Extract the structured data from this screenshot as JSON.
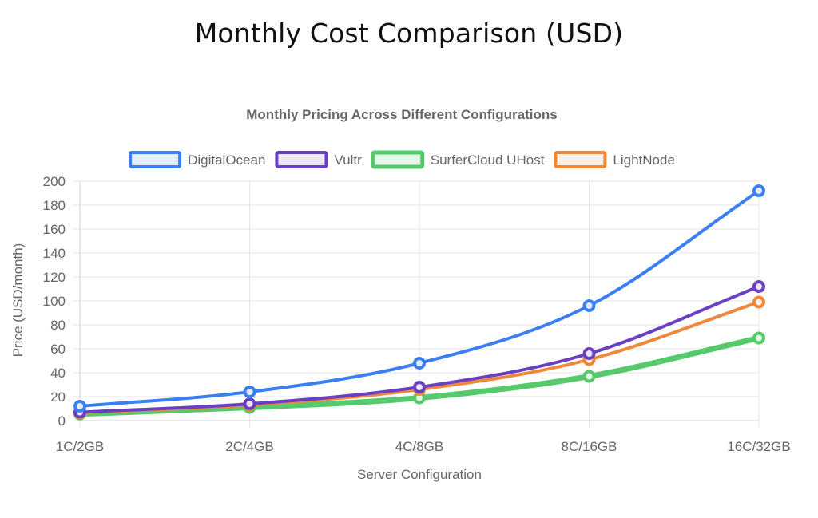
{
  "page": {
    "title": "Monthly Cost Comparison (USD)"
  },
  "chart_data": {
    "type": "line",
    "title": "Monthly Pricing Across Different Configurations",
    "xlabel": "Server Configuration",
    "ylabel": "Price (USD/month)",
    "categories": [
      "1C/2GB",
      "2C/4GB",
      "4C/8GB",
      "8C/16GB",
      "16C/32GB"
    ],
    "ylim": [
      0,
      200
    ],
    "yticks": [
      0,
      20,
      40,
      60,
      80,
      100,
      120,
      140,
      160,
      180,
      200
    ],
    "grid": true,
    "legend_position": "top",
    "series": [
      {
        "name": "DigitalOcean",
        "values": [
          12,
          24,
          48,
          96,
          192
        ],
        "color": "#3b7ff5",
        "fill": "#e3edfd",
        "line_width": 4
      },
      {
        "name": "Vultr",
        "values": [
          7,
          14,
          28,
          56,
          112
        ],
        "color": "#6a3fc1",
        "fill": "#ece6f8",
        "line_width": 4
      },
      {
        "name": "SurferCloud UHost",
        "values": [
          5.5,
          11,
          19,
          37,
          69
        ],
        "color": "#55c96b",
        "fill": "#e4f7e8",
        "line_width": 7
      },
      {
        "name": "LightNode",
        "values": [
          6.5,
          13,
          26,
          51,
          99
        ],
        "color": "#f0883a",
        "fill": "#fdefe3",
        "line_width": 4
      }
    ]
  }
}
